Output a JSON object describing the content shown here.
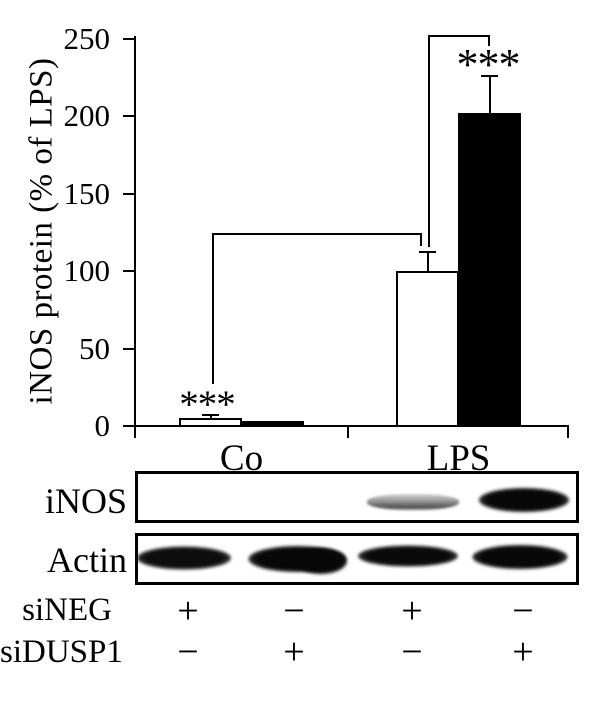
{
  "chart_data": {
    "type": "bar",
    "title": "",
    "ylabel": "iNOS protein (% of LPS)",
    "xlabel": "",
    "ylim": [
      0,
      250
    ],
    "yticks": [
      0,
      50,
      100,
      150,
      200,
      250
    ],
    "grid": false,
    "legend": "none",
    "categories": [
      "Co",
      "LPS"
    ],
    "series": [
      {
        "name": "siNEG",
        "fill": "#ffffff",
        "values": [
          5,
          100
        ],
        "errors_plus": [
          2.5,
          13
        ]
      },
      {
        "name": "siDUSP1",
        "fill": "#000000",
        "values": [
          3.5,
          202
        ],
        "errors_plus": [
          0,
          25
        ]
      }
    ],
    "significance": [
      {
        "label": "***",
        "location": "Co group"
      },
      {
        "label": "***",
        "location": "LPS siDUSP1 bar"
      },
      {
        "style": "bracket",
        "comparison": "Co group vs LPS siNEG bar"
      },
      {
        "style": "bracket",
        "comparison": "LPS siNEG bar vs LPS siDUSP1 bar"
      }
    ]
  },
  "blots": {
    "panels": [
      {
        "label": "iNOS",
        "band_intensities": [
          0,
          0,
          0.5,
          1
        ]
      },
      {
        "label": "Actin",
        "band_intensities": [
          0.9,
          1,
          0.95,
          1
        ]
      }
    ]
  },
  "conditions": {
    "rows": [
      {
        "label": "siNEG",
        "values": [
          "+",
          "−",
          "+",
          "−"
        ]
      },
      {
        "label": "siDUSP1",
        "values": [
          "−",
          "+",
          "−",
          "+"
        ]
      }
    ]
  }
}
